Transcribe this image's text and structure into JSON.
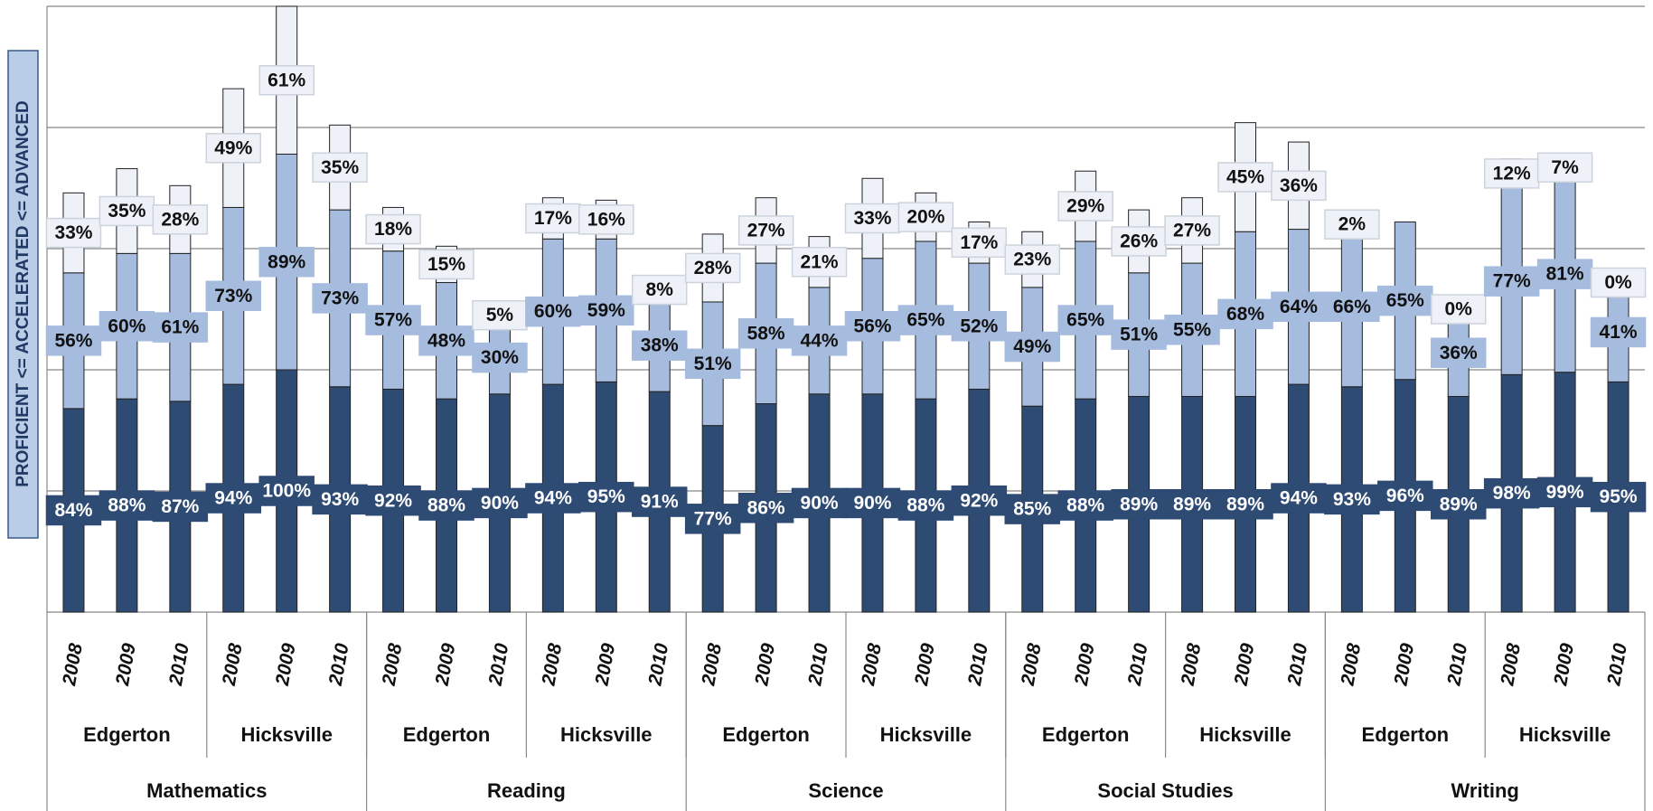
{
  "chart_data": {
    "type": "stacked_bar",
    "y_label": "PROFICIENT <= ACCELERATED <= ADVANCED",
    "categories": [
      "2008",
      "2009",
      "2010",
      "2008",
      "2009",
      "2010",
      "2008",
      "2009",
      "2010",
      "2008",
      "2009",
      "2010",
      "2008",
      "2009",
      "2010",
      "2008",
      "2009",
      "2010",
      "2008",
      "2009",
      "2010",
      "2008",
      "2009",
      "2010",
      "2008",
      "2009",
      "2010",
      "2008",
      "2009",
      "2010"
    ],
    "groups": [
      "Edgerton",
      "Hicksville",
      "Edgerton",
      "Hicksville",
      "Edgerton",
      "Hicksville",
      "Edgerton",
      "Hicksville",
      "Edgerton",
      "Hicksville"
    ],
    "supergroups": [
      "Mathematics",
      "Reading",
      "Science",
      "Social Studies",
      "Writing"
    ],
    "series": [
      {
        "color": "#2e4b74",
        "label_color": "#ffffff",
        "values": [
          84,
          88,
          87,
          94,
          100,
          93,
          92,
          88,
          90,
          94,
          95,
          91,
          77,
          86,
          90,
          90,
          88,
          92,
          85,
          88,
          89,
          89,
          89,
          94,
          93,
          96,
          89,
          98,
          99,
          95
        ],
        "value_labels": [
          "84%",
          "88%",
          "87%",
          "94%",
          "100%",
          "93%",
          "92%",
          "88%",
          "90%",
          "94%",
          "95%",
          "91%",
          "77%",
          "86%",
          "90%",
          "90%",
          "88%",
          "92%",
          "85%",
          "88%",
          "89%",
          "89%",
          "89%",
          "94%",
          "93%",
          "96%",
          "89%",
          "98%",
          "99%",
          "95%"
        ]
      },
      {
        "color": "#a6bcdf",
        "label_color": "#111111",
        "values": [
          56,
          60,
          61,
          73,
          89,
          73,
          57,
          48,
          30,
          60,
          59,
          38,
          51,
          58,
          44,
          56,
          65,
          52,
          49,
          65,
          51,
          55,
          68,
          64,
          66,
          65,
          36,
          77,
          81,
          41
        ],
        "value_labels": [
          "56%",
          "60%",
          "61%",
          "73%",
          "89%",
          "73%",
          "57%",
          "48%",
          "30%",
          "60%",
          "59%",
          "38%",
          "51%",
          "58%",
          "44%",
          "56%",
          "65%",
          "52%",
          "49%",
          "65%",
          "51%",
          "55%",
          "68%",
          "64%",
          "66%",
          "65%",
          "36%",
          "77%",
          "81%",
          "41%"
        ]
      },
      {
        "color": "#eef2f8",
        "label_color": "#111111",
        "values": [
          33,
          35,
          28,
          49,
          61,
          35,
          18,
          15,
          5,
          17,
          16,
          8,
          28,
          27,
          21,
          33,
          20,
          17,
          23,
          29,
          26,
          27,
          45,
          36,
          2,
          null,
          0,
          12,
          7,
          0
        ],
        "value_labels": [
          "33%",
          "35%",
          "28%",
          "49%",
          "61%",
          "35%",
          "18%",
          "15%",
          "5%",
          "17%",
          "16%",
          "8%",
          "28%",
          "27%",
          "21%",
          "33%",
          "20%",
          "17%",
          "23%",
          "29%",
          "26%",
          "27%",
          "45%",
          "36%",
          "2%",
          null,
          "0%",
          "12%",
          "7%",
          "0%"
        ]
      }
    ],
    "ylim": [
      0,
      250
    ],
    "yticks": [
      0,
      50,
      100,
      150,
      200,
      250
    ],
    "grid": true
  }
}
